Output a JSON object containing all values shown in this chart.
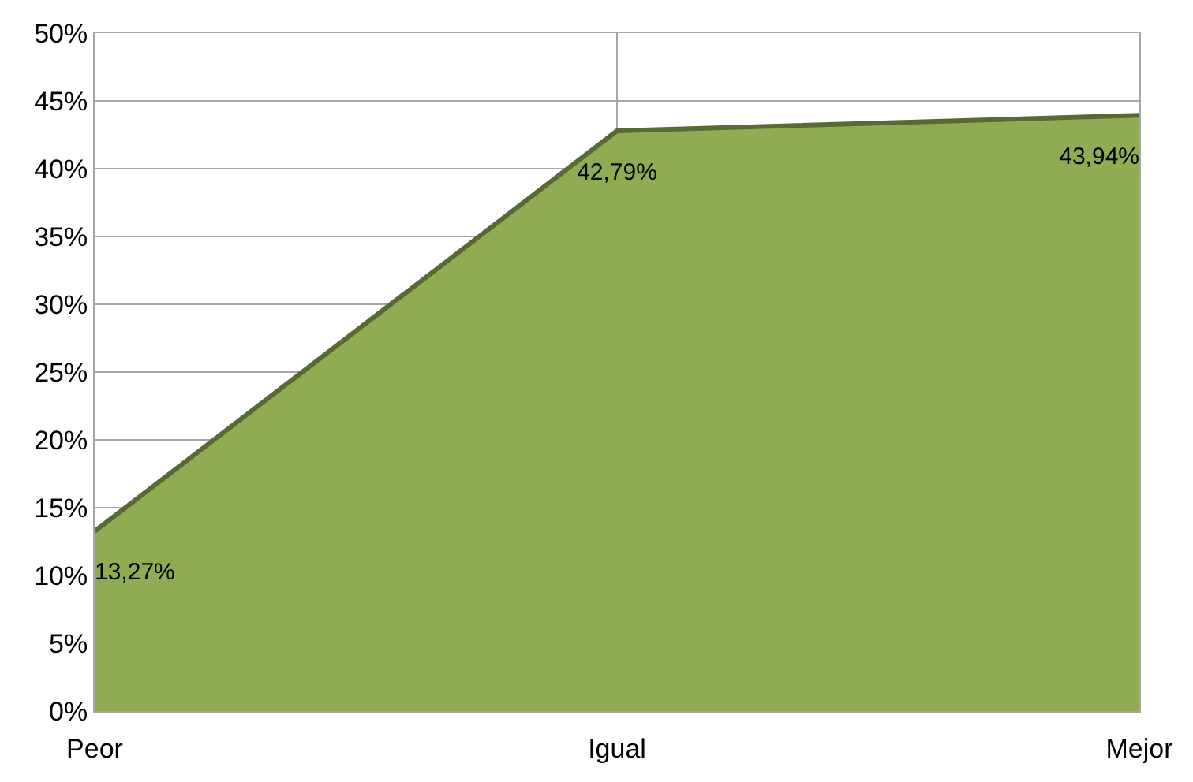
{
  "chart_data": {
    "type": "area",
    "categories": [
      "Peor",
      "Igual",
      "Mejor"
    ],
    "series": [
      {
        "color": "#8fac52",
        "values": [
          13.27,
          42.79,
          43.94
        ],
        "value_labels": [
          "13,27%",
          "42,79%",
          "43,94%"
        ]
      }
    ],
    "ylim": [
      0,
      50
    ],
    "yticks": [
      {
        "value": 0,
        "label": "0%"
      },
      {
        "value": 5,
        "label": "5%"
      },
      {
        "value": 10,
        "label": "10%"
      },
      {
        "value": 15,
        "label": "15%"
      },
      {
        "value": 20,
        "label": "20%"
      },
      {
        "value": 25,
        "label": "25%"
      },
      {
        "value": 30,
        "label": "30%"
      },
      {
        "value": 35,
        "label": "35%"
      },
      {
        "value": 40,
        "label": "40%"
      },
      {
        "value": 45,
        "label": "45%"
      },
      {
        "value": 50,
        "label": "50%"
      }
    ],
    "grid": true
  }
}
